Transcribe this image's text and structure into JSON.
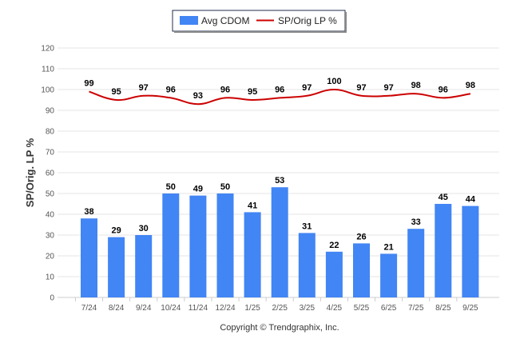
{
  "chart_data": {
    "type": "bar",
    "title": "",
    "xlabel": "",
    "ylabel": "SP/Orig. LP %",
    "ylim": [
      0,
      120
    ],
    "yticks": [
      0,
      10,
      20,
      30,
      40,
      50,
      60,
      70,
      80,
      90,
      100,
      110,
      120
    ],
    "grid": true,
    "legend_position": "top-center",
    "categories": [
      "7/24",
      "8/24",
      "9/24",
      "10/24",
      "11/24",
      "12/24",
      "1/25",
      "2/25",
      "3/25",
      "4/25",
      "5/25",
      "6/25",
      "7/25",
      "8/25",
      "9/25"
    ],
    "series": [
      {
        "name": "Avg CDOM",
        "type": "bar",
        "color": "#4285f4",
        "values": [
          38,
          29,
          30,
          50,
          49,
          50,
          41,
          53,
          31,
          22,
          26,
          21,
          33,
          45,
          44
        ]
      },
      {
        "name": "SP/Orig LP %",
        "type": "line",
        "color": "#cc0000",
        "values": [
          99,
          95,
          97,
          96,
          93,
          96,
          95,
          96,
          97,
          100,
          97,
          97,
          98,
          96,
          98
        ]
      }
    ]
  },
  "footer": {
    "copyright": "Copyright © Trendgraphix, Inc."
  }
}
